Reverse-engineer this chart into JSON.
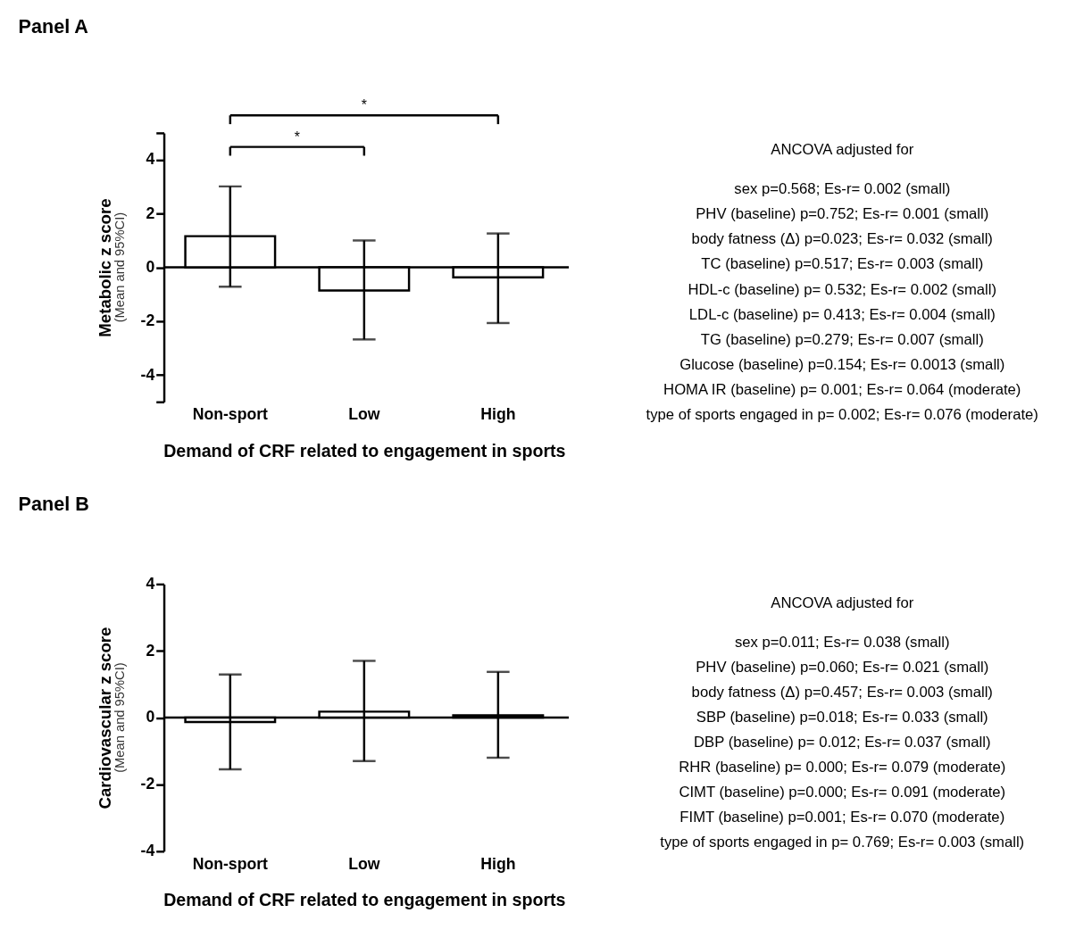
{
  "chart_data": [
    {
      "type": "bar",
      "title": "Panel A",
      "xlabel": "Demand of CRF related to engagement in sports",
      "ylabel": "Metabolic z score\n(Mean and 95%CI)",
      "categories": [
        "Non-sport",
        "Low",
        "High"
      ],
      "values": [
        1.16,
        -0.86,
        -0.37
      ],
      "color": "#ffffff",
      "errors": [
        [
          -0.72,
          3.01
        ],
        [
          -2.68,
          1.0
        ],
        [
          -2.07,
          1.26
        ]
      ],
      "ylim": [
        -5,
        5
      ],
      "yticks": [
        {
          "value": -5,
          "label": null
        },
        -4,
        -2,
        0,
        2,
        4,
        {
          "value": 5,
          "label": null
        }
      ],
      "ref_lines": [
        {
          "axis": "y",
          "value": 0
        }
      ],
      "annotations": [
        "*",
        "*"
      ]
    },
    {
      "type": "other",
      "annotations": [
        "ANCOVA adjusted for",
        "sex p=0.568; Es-r= 0.002 (small)",
        "PHV (baseline) p=0.752; Es-r= 0.001 (small)",
        "body fatness (Δ) p=0.023; Es-r= 0.032 (small)",
        "TC (baseline) p=0.517; Es-r= 0.003 (small)",
        "HDL-c (baseline) p= 0.532; Es-r= 0.002 (small)",
        "LDL-c (baseline) p= 0.413; Es-r= 0.004 (small)",
        "TG (baseline) p=0.279; Es-r= 0.007 (small)",
        "Glucose (baseline) p=0.154; Es-r= 0.0013 (small)",
        "HOMA IR (baseline) p= 0.001; Es-r= 0.064 (moderate)",
        "type of sports engaged in  p= 0.002; Es-r= 0.076 (moderate)"
      ]
    },
    {
      "type": "bar",
      "title": "Panel B",
      "xlabel": "Demand of CRF  related to engagement in sports",
      "ylabel": "Cardiovascular z score\n(Mean and 95%CI)",
      "categories": [
        "Non-sport",
        "Low",
        "High"
      ],
      "values": [
        -0.13,
        0.18,
        0.07
      ],
      "color": "#ffffff",
      "errors": [
        [
          -1.55,
          1.29
        ],
        [
          -1.3,
          1.7
        ],
        [
          -1.2,
          1.37
        ]
      ],
      "ylim": [
        -4,
        4
      ],
      "yticks": [
        -4,
        -2,
        0,
        2,
        4
      ],
      "ref_lines": [
        {
          "axis": "y",
          "value": 0
        }
      ]
    },
    {
      "type": "other",
      "annotations": [
        "ANCOVA adjusted for",
        "sex p=0.011; Es-r= 0.038 (small)",
        "PHV (baseline) p=0.060; Es-r= 0.021 (small)",
        "body fatness (Δ) p=0.457; Es-r= 0.003 (small)",
        "SBP (baseline) p=0.018; Es-r= 0.033 (small)",
        "DBP (baseline) p= 0.012; Es-r= 0.037 (small)",
        "RHR (baseline) p= 0.000; Es-r= 0.079 (moderate)",
        "CIMT (baseline) p=0.000; Es-r= 0.091 (moderate)",
        "FIMT (baseline) p=0.001; Es-r= 0.070 (moderate)",
        "type of sports engaged in  p= 0.769; Es-r= 0.003 (small)"
      ]
    }
  ]
}
